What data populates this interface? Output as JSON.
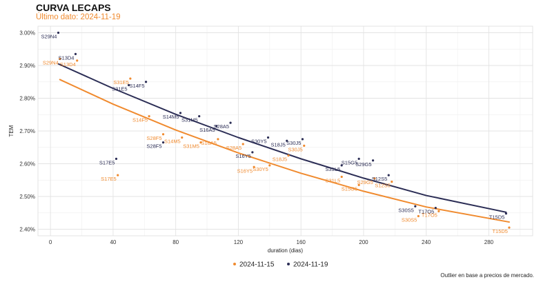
{
  "title": "CURVA LECAPS",
  "subtitle": "Último dato: 2024-11-19",
  "caption": "Outlier en base a precios de mercado.",
  "chart_data": {
    "type": "scatter",
    "xlabel": "duration (dias)",
    "ylabel": "TEM",
    "xlim": [
      -8,
      308
    ],
    "ylim": [
      2.38,
      3.02
    ],
    "x_ticks": [
      0,
      40,
      80,
      120,
      160,
      200,
      240,
      280
    ],
    "x_tick_labels": [
      "0",
      "40",
      "80",
      "120",
      "160",
      "200",
      "240",
      "280"
    ],
    "y_ticks": [
      2.4,
      2.5,
      2.6,
      2.7,
      2.8,
      2.9,
      3.0
    ],
    "y_tick_labels": [
      "2.40%",
      "2.50%",
      "2.60%",
      "2.70%",
      "2.80%",
      "2.90%",
      "3.00%"
    ],
    "grid": true,
    "legend_position": "bottom",
    "colors": {
      "2024-11-15": "#f08a2e",
      "2024-11-19": "#2b2d55"
    },
    "series": [
      {
        "name": "2024-11-15",
        "color": "#f08a2e",
        "fit": [
          [
            6,
            2.857
          ],
          [
            40,
            2.782
          ],
          [
            80,
            2.703
          ],
          [
            120,
            2.633
          ],
          [
            160,
            2.571
          ],
          [
            200,
            2.516
          ],
          [
            240,
            2.468
          ],
          [
            293,
            2.422
          ]
        ],
        "points": [
          {
            "label": "S29N4",
            "x": 6,
            "y": 2.92
          },
          {
            "label": "S13D4",
            "x": 17,
            "y": 2.915
          },
          {
            "label": "S31E5",
            "x": 51,
            "y": 2.86
          },
          {
            "label": "S17E5",
            "x": 43,
            "y": 2.565
          },
          {
            "label": "S14F5",
            "x": 63,
            "y": 2.745
          },
          {
            "label": "S28F5",
            "x": 72,
            "y": 2.69
          },
          {
            "label": "S14M5",
            "x": 84,
            "y": 2.68
          },
          {
            "label": "S31M5",
            "x": 96,
            "y": 2.665
          },
          {
            "label": "S16A5",
            "x": 107,
            "y": 2.675
          },
          {
            "label": "S28A5",
            "x": 123,
            "y": 2.66
          },
          {
            "label": "S30Y5",
            "x": 140,
            "y": 2.595
          },
          {
            "label": "S16Y5",
            "x": 130,
            "y": 2.59
          },
          {
            "label": "S18J5",
            "x": 152,
            "y": 2.625
          },
          {
            "label": "S30J5",
            "x": 162,
            "y": 2.655
          },
          {
            "label": "S31L5",
            "x": 186,
            "y": 2.56
          },
          {
            "label": "S15G5",
            "x": 197,
            "y": 2.535
          },
          {
            "label": "S29G5",
            "x": 207,
            "y": 2.555
          },
          {
            "label": "S12S5",
            "x": 218,
            "y": 2.545
          },
          {
            "label": "S30S5",
            "x": 235,
            "y": 2.44
          },
          {
            "label": "T17O5",
            "x": 248,
            "y": 2.455
          },
          {
            "label": "T15D5",
            "x": 293,
            "y": 2.405
          }
        ]
      },
      {
        "name": "2024-11-19",
        "color": "#2b2d55",
        "fit": [
          [
            5,
            2.905
          ],
          [
            40,
            2.83
          ],
          [
            80,
            2.751
          ],
          [
            120,
            2.68
          ],
          [
            160,
            2.615
          ],
          [
            200,
            2.556
          ],
          [
            240,
            2.503
          ],
          [
            291,
            2.452
          ]
        ],
        "points": [
          {
            "label": "S29N4",
            "x": 5,
            "y": 3.0
          },
          {
            "label": "S13D4",
            "x": 16,
            "y": 2.935
          },
          {
            "label": "S31E5",
            "x": 50,
            "y": 2.84
          },
          {
            "label": "S14F5",
            "x": 61,
            "y": 2.85
          },
          {
            "label": "S17E5",
            "x": 42,
            "y": 2.615
          },
          {
            "label": "S28F5",
            "x": 72,
            "y": 2.665
          },
          {
            "label": "S14M5",
            "x": 83,
            "y": 2.755
          },
          {
            "label": "S31M5",
            "x": 95,
            "y": 2.745
          },
          {
            "label": "S16A5",
            "x": 106,
            "y": 2.715
          },
          {
            "label": "S28A5",
            "x": 115,
            "y": 2.725
          },
          {
            "label": "S30Y5",
            "x": 139,
            "y": 2.68
          },
          {
            "label": "S16Y5",
            "x": 129,
            "y": 2.635
          },
          {
            "label": "S18J5",
            "x": 151,
            "y": 2.67
          },
          {
            "label": "S30J5",
            "x": 161,
            "y": 2.675
          },
          {
            "label": "S15G5",
            "x": 197,
            "y": 2.615
          },
          {
            "label": "S31L5",
            "x": 186,
            "y": 2.595
          },
          {
            "label": "S29G5",
            "x": 206,
            "y": 2.61
          },
          {
            "label": "S12S5",
            "x": 216,
            "y": 2.565
          },
          {
            "label": "T17O5",
            "x": 246,
            "y": 2.465
          },
          {
            "label": "S30S5",
            "x": 233,
            "y": 2.47
          },
          {
            "label": "T15D5",
            "x": 291,
            "y": 2.448
          }
        ]
      }
    ]
  }
}
